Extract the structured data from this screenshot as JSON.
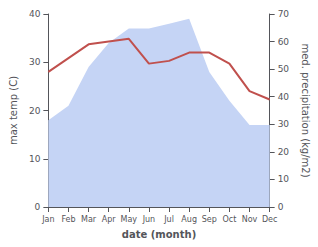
{
  "chart_data": {
    "type": "line",
    "categories": [
      "Jan",
      "Feb",
      "Mar",
      "Apr",
      "May",
      "Jun",
      "Jul",
      "Aug",
      "Sep",
      "Oct",
      "Nov",
      "Dec"
    ],
    "series": [
      {
        "type": "area",
        "color": "#c5d4f5",
        "values": [
          18,
          21,
          29,
          34,
          37,
          37,
          38,
          39,
          28,
          22,
          17,
          17
        ]
      },
      {
        "type": "line",
        "color": "#c0504d",
        "axis": "y2",
        "values": [
          49,
          54,
          59,
          60,
          61,
          52,
          53,
          56,
          56,
          52,
          42,
          39
        ]
      }
    ],
    "xlabel": "date (month)",
    "ylabel": "max temp (C)",
    "y2label": "med. precipitation (kg/m2)",
    "ylim": [
      0,
      40
    ],
    "yticks": [
      0,
      10,
      20,
      30,
      40
    ],
    "y2lim": [
      0,
      70
    ],
    "y2ticks": [
      0,
      10,
      20,
      30,
      40,
      50,
      60,
      70
    ],
    "grid": false
  }
}
